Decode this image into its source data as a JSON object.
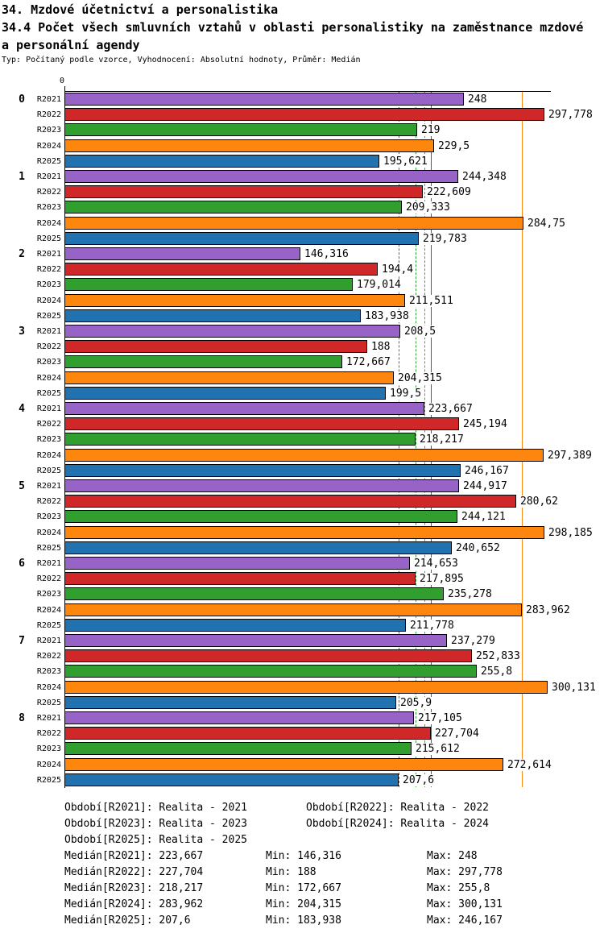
{
  "header": {
    "line1": "34. Mzdové účetnictví a personalistika",
    "line2": "34.4 Počet všech smluvních vztahů v oblasti personalistiky na zaměstnance mzdové",
    "line3": "a personální agendy",
    "subtitle": "Typ: Počítaný podle vzorce, Vyhodnocení: Absolutní hodnoty, Průměr: Medián",
    "axis_zero": "0"
  },
  "chart_data": {
    "type": "bar",
    "orientation": "horizontal",
    "title": "34.4 Počet všech smluvních vztahů v oblasti personalistiky na zaměstnance mzdové a personální agendy",
    "xlim": [
      0,
      302
    ],
    "grid": false,
    "series": [
      "R2021",
      "R2022",
      "R2023",
      "R2024",
      "R2025"
    ],
    "series_colors": [
      "#9863C6",
      "#D02828",
      "#319F2F",
      "#FD870E",
      "#2173AF"
    ],
    "categories": [
      "0",
      "1",
      "2",
      "3",
      "4",
      "5",
      "6",
      "7",
      "8"
    ],
    "groups": [
      {
        "category": "0",
        "bars": [
          {
            "value": 248,
            "label": "248"
          },
          {
            "value": 297.778,
            "label": "297,778"
          },
          {
            "value": 219,
            "label": "219"
          },
          {
            "value": 229.5,
            "label": "229,5"
          },
          {
            "value": 195.621,
            "label": "195,621"
          }
        ]
      },
      {
        "category": "1",
        "bars": [
          {
            "value": 244.348,
            "label": "244,348"
          },
          {
            "value": 222.609,
            "label": "222,609"
          },
          {
            "value": 209.333,
            "label": "209,333"
          },
          {
            "value": 284.75,
            "label": "284,75"
          },
          {
            "value": 219.783,
            "label": "219,783"
          }
        ]
      },
      {
        "category": "2",
        "bars": [
          {
            "value": 146.316,
            "label": "146,316"
          },
          {
            "value": 194.4,
            "label": "194,4"
          },
          {
            "value": 179.014,
            "label": "179,014"
          },
          {
            "value": 211.511,
            "label": "211,511"
          },
          {
            "value": 183.938,
            "label": "183,938"
          }
        ]
      },
      {
        "category": "3",
        "bars": [
          {
            "value": 208.5,
            "label": "208,5"
          },
          {
            "value": 188,
            "label": "188"
          },
          {
            "value": 172.667,
            "label": "172,667"
          },
          {
            "value": 204.315,
            "label": "204,315"
          },
          {
            "value": 199.5,
            "label": "199,5"
          }
        ]
      },
      {
        "category": "4",
        "bars": [
          {
            "value": 223.667,
            "label": "223,667"
          },
          {
            "value": 245.194,
            "label": "245,194"
          },
          {
            "value": 218.217,
            "label": "218,217"
          },
          {
            "value": 297.389,
            "label": "297,389"
          },
          {
            "value": 246.167,
            "label": "246,167"
          }
        ]
      },
      {
        "category": "5",
        "bars": [
          {
            "value": 244.917,
            "label": "244,917"
          },
          {
            "value": 280.62,
            "label": "280,62"
          },
          {
            "value": 244.121,
            "label": "244,121"
          },
          {
            "value": 298.185,
            "label": "298,185"
          },
          {
            "value": 240.652,
            "label": "240,652"
          }
        ]
      },
      {
        "category": "6",
        "bars": [
          {
            "value": 214.653,
            "label": "214,653"
          },
          {
            "value": 217.895,
            "label": "217,895"
          },
          {
            "value": 235.278,
            "label": "235,278"
          },
          {
            "value": 283.962,
            "label": "283,962"
          },
          {
            "value": 211.778,
            "label": "211,778"
          }
        ]
      },
      {
        "category": "7",
        "bars": [
          {
            "value": 237.279,
            "label": "237,279"
          },
          {
            "value": 252.833,
            "label": "252,833"
          },
          {
            "value": 255.8,
            "label": "255,8"
          },
          {
            "value": 300.131,
            "label": "300,131"
          },
          {
            "value": 205.9,
            "label": "205,9"
          }
        ]
      },
      {
        "category": "8",
        "bars": [
          {
            "value": 217.105,
            "label": "217,105"
          },
          {
            "value": 227.704,
            "label": "227,704"
          },
          {
            "value": 215.612,
            "label": "215,612"
          },
          {
            "value": 272.614,
            "label": "272,614"
          },
          {
            "value": 207.6,
            "label": "207,6"
          }
        ]
      }
    ],
    "median_lines": [
      {
        "series": "R2021",
        "value": 223.667,
        "color": "#9863C6",
        "style": "dashed"
      },
      {
        "series": "R2022",
        "value": 227.704,
        "color": "#D02828",
        "style": "solid"
      },
      {
        "series": "R2023",
        "value": 218.217,
        "color": "#319F2F",
        "style": "dashed"
      },
      {
        "series": "R2024",
        "value": 283.962,
        "color": "#FD870E",
        "style": "solid"
      },
      {
        "series": "R2025",
        "value": 207.6,
        "color": "#2173AF",
        "style": "dashed"
      }
    ]
  },
  "legend": {
    "items": [
      {
        "text": "Období[R2021]: Realita - 2021",
        "row": 0,
        "col": 0
      },
      {
        "text": "Období[R2022]: Realita - 2022",
        "row": 0,
        "col": 1
      },
      {
        "text": "Období[R2023]: Realita - 2023",
        "row": 1,
        "col": 0
      },
      {
        "text": "Období[R2024]: Realita - 2024",
        "row": 1,
        "col": 1
      },
      {
        "text": "Období[R2025]: Realita - 2025",
        "row": 2,
        "col": 0
      }
    ]
  },
  "stats": {
    "rows": [
      {
        "median": "Medián[R2021]: 223,667",
        "min": "Min: 146,316",
        "max": "Max: 248"
      },
      {
        "median": "Medián[R2022]: 227,704",
        "min": "Min: 188",
        "max": "Max: 297,778"
      },
      {
        "median": "Medián[R2023]: 218,217",
        "min": "Min: 172,667",
        "max": "Max: 255,8"
      },
      {
        "median": "Medián[R2024]: 283,962",
        "min": "Min: 204,315",
        "max": "Max: 300,131"
      },
      {
        "median": "Medián[R2025]: 207,6",
        "min": "Min: 183,938",
        "max": "Max: 246,167"
      }
    ]
  }
}
